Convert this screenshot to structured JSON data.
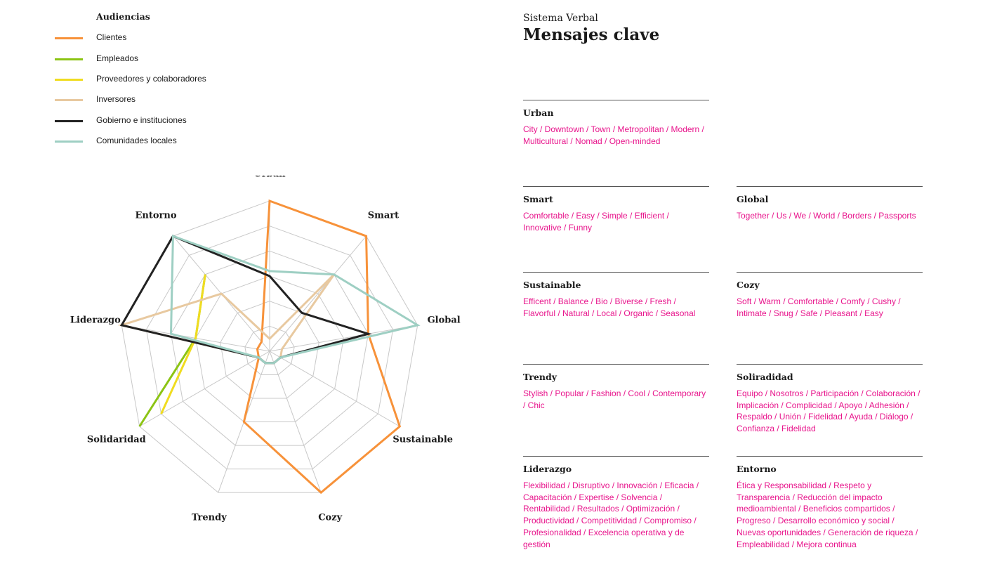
{
  "legend": {
    "title": "Audiencias",
    "items": [
      {
        "label": "Clientes",
        "color": "#f7923a"
      },
      {
        "label": "Empleados",
        "color": "#8cc414"
      },
      {
        "label": "Proveedores y colaboradores",
        "color": "#f0dc20"
      },
      {
        "label": "Inversores",
        "color": "#e8c9a0"
      },
      {
        "label": "Gobierno e instituciones",
        "color": "#222222"
      },
      {
        "label": "Comunidades locales",
        "color": "#9ecfc3"
      }
    ]
  },
  "chart_data": {
    "type": "radar",
    "axes": [
      "Urban",
      "Smart",
      "Global",
      "Sustainable",
      "Cozy",
      "Trendy",
      "Solidaridad",
      "Liderazgo",
      "Entorno"
    ],
    "rmax": 6,
    "grid_levels": 6,
    "legend_position": "top-left",
    "series": [
      {
        "name": "Clientes",
        "color": "#f7923a",
        "values": [
          6,
          6,
          4,
          6,
          6,
          3,
          0.5,
          0.5,
          0.5
        ]
      },
      {
        "name": "Empleados",
        "color": "#8cc414",
        "values": [
          null,
          null,
          null,
          null,
          null,
          null,
          6,
          3,
          4
        ]
      },
      {
        "name": "Proveedores y colaboradores",
        "color": "#f0dc20",
        "values": [
          null,
          null,
          null,
          null,
          null,
          null,
          5,
          3,
          4
        ]
      },
      {
        "name": "Inversores",
        "color": "#e8c9a0",
        "values": [
          0.5,
          4,
          0.5,
          0.5,
          0.5,
          0.5,
          0.5,
          6,
          3
        ]
      },
      {
        "name": "Gobierno e instituciones",
        "color": "#222222",
        "values": [
          3,
          2,
          4,
          0.5,
          0.5,
          0.5,
          0.5,
          6,
          6
        ]
      },
      {
        "name": "Comunidades locales",
        "color": "#9ecfc3",
        "values": [
          3.2,
          4,
          6,
          0.5,
          0.5,
          0.5,
          0.5,
          4,
          6
        ]
      }
    ]
  },
  "header": {
    "subtitle": "Sistema Verbal",
    "title": "Mensajes clave"
  },
  "messages": [
    {
      "heading": "Urban",
      "text": "City / Downtown / Town / Metropolitan / Modern / Multicultural / Nomad / Open-minded"
    },
    {
      "heading": "Smart",
      "text": "Comfortable / Easy / Simple / Efficient / Innovative / Funny"
    },
    {
      "heading": "Global",
      "text": "Together / Us / We / World / Borders / Passports"
    },
    {
      "heading": "Sustainable",
      "text": "Efficent / Balance / Bio / Biverse / Fresh / Flavorful / Natural / Local / Organic / Seasonal"
    },
    {
      "heading": "Cozy",
      "text": "Soft / Warm / Comfortable / Comfy / Cushy / Intimate / Snug / Safe / Pleasant / Easy"
    },
    {
      "heading": "Trendy",
      "text": "Stylish / Popular / Fashion / Cool / Contemporary / Chic"
    },
    {
      "heading": "Soliradidad",
      "text": "Equipo / Nosotros / Participación  / Colaboración / Implicación / Complicidad / Apoyo / Adhesión / Respaldo / Unión / Fidelidad / Ayuda / Diálogo / Confianza / Fidelidad"
    },
    {
      "heading": "Liderazgo",
      "text": "Flexibilidad / Disruptivo / Innovación / Eficacia / Capacitación / Expertise / Solvencia / Rentabilidad / Resultados / Optimización / Productividad / Competitividad / Compromiso / Profesionalidad / Excelencia operativa y de gestión"
    },
    {
      "heading": "Entorno",
      "text": "Ética y Responsabilidad / Respeto y Transparencia / Reducción del impacto medioambiental / Beneficios compartidos / Progreso / Desarrollo económico y social / Nuevas oportunidades / Generación de riqueza / Empleabilidad / Mejora continua"
    }
  ]
}
